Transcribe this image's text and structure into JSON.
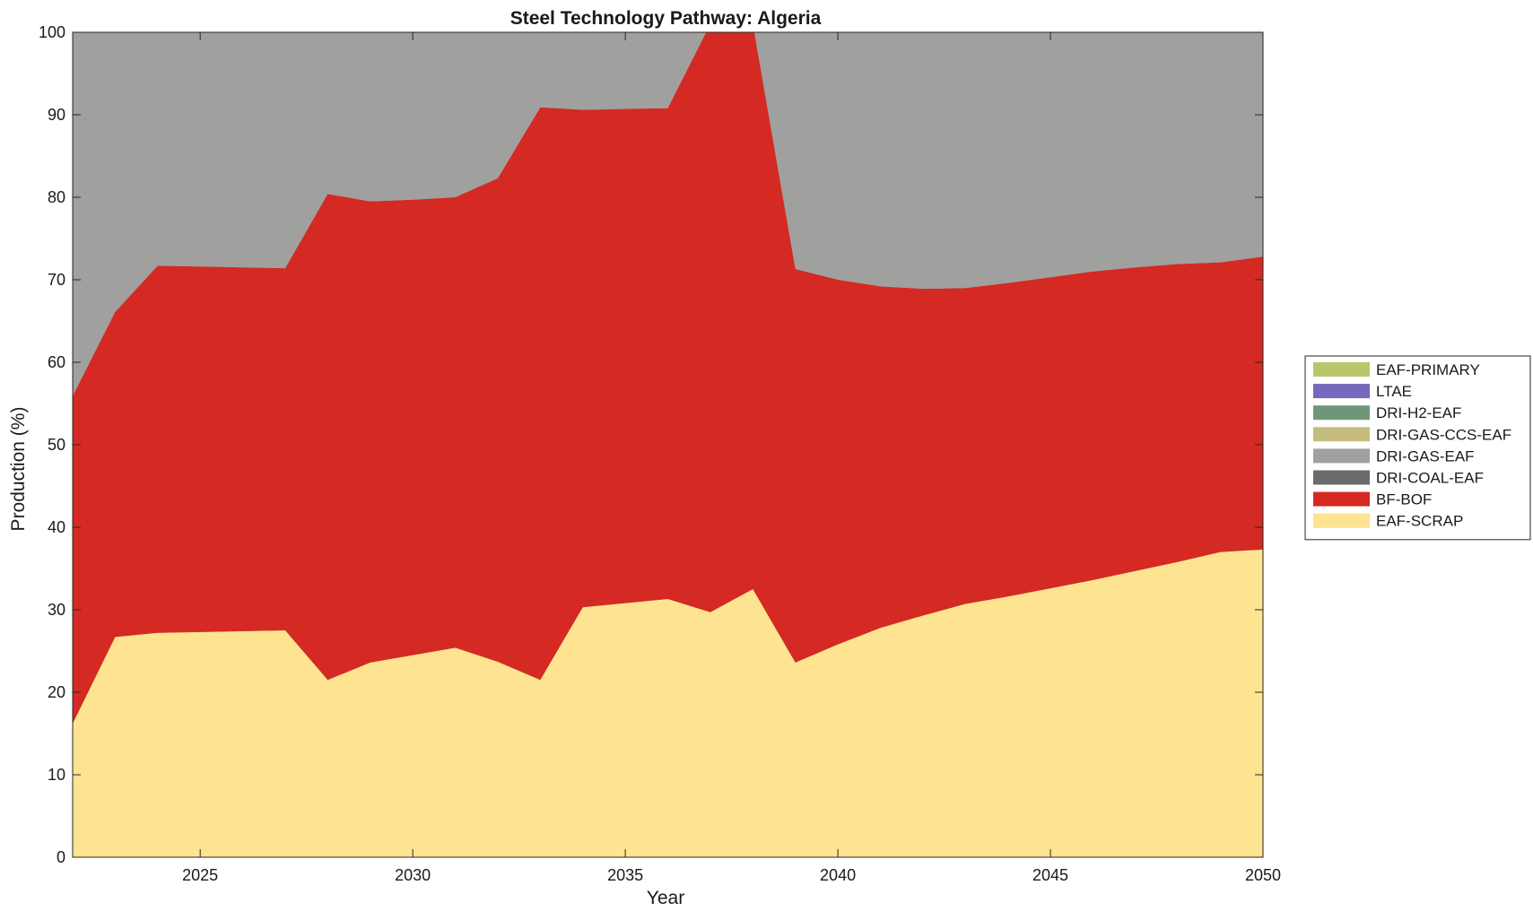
{
  "chart_data": {
    "type": "area",
    "stacked": true,
    "title": "Steel Technology Pathway: Algeria",
    "xlabel": "Year",
    "ylabel": "Production (%)",
    "xlim": [
      2022,
      2050
    ],
    "ylim": [
      0,
      100
    ],
    "xticks": [
      2025,
      2030,
      2035,
      2040,
      2045,
      2050
    ],
    "yticks": [
      0,
      10,
      20,
      30,
      40,
      50,
      60,
      70,
      80,
      90,
      100
    ],
    "grid": false,
    "background_color": "#a0a09f",
    "legend_position": "right",
    "x": [
      2022,
      2023,
      2024,
      2025,
      2026,
      2027,
      2028,
      2029,
      2030,
      2031,
      2032,
      2033,
      2034,
      2035,
      2036,
      2037,
      2038,
      2039,
      2040,
      2041,
      2042,
      2043,
      2044,
      2045,
      2046,
      2047,
      2048,
      2049,
      2050
    ],
    "series": [
      {
        "name": "EAF-SCRAP",
        "color": "#fee391",
        "values": [
          16.2,
          26.7,
          27.2,
          27.3,
          27.4,
          27.5,
          21.5,
          23.6,
          24.5,
          25.4,
          23.7,
          21.5,
          30.3,
          30.8,
          31.3,
          29.7,
          32.5,
          23.6,
          25.8,
          27.8,
          29.3,
          30.7,
          31.6,
          32.6,
          33.6,
          34.7,
          35.8,
          37.0,
          37.3
        ]
      },
      {
        "name": "BF-BOF",
        "color": "#d42a23",
        "values": [
          39.7,
          39.4,
          44.5,
          44.3,
          44.1,
          43.9,
          58.9,
          55.9,
          55.2,
          54.6,
          58.6,
          69.4,
          60.3,
          59.9,
          59.5,
          71.3,
          68.5,
          47.7,
          44.2,
          41.4,
          39.6,
          38.3,
          38.0,
          37.7,
          37.4,
          36.8,
          36.1,
          35.1,
          35.5
        ]
      },
      {
        "name": "DRI-COAL-EAF",
        "color": "#6b6b6b",
        "values": [
          0,
          0,
          0,
          0,
          0,
          0,
          0,
          0,
          0,
          0,
          0,
          0,
          0,
          0,
          0,
          0,
          0,
          0,
          0,
          0,
          0,
          0,
          0,
          0,
          0,
          0,
          0,
          0,
          0
        ]
      },
      {
        "name": "DRI-GAS-EAF",
        "color": "#a0a09f",
        "values": [
          44.1,
          33.9,
          28.3,
          28.4,
          28.5,
          28.6,
          19.6,
          20.5,
          20.3,
          20.0,
          17.7,
          9.1,
          9.4,
          9.3,
          9.2,
          0,
          0,
          28.7,
          30.0,
          30.8,
          31.1,
          31.0,
          30.4,
          29.7,
          29.0,
          28.5,
          28.1,
          27.9,
          27.2
        ]
      },
      {
        "name": "DRI-GAS-CCS-EAF",
        "color": "#c5bc80",
        "values": [
          0,
          0,
          0,
          0,
          0,
          0,
          0,
          0,
          0,
          0,
          0,
          0,
          0,
          0,
          0,
          0,
          0,
          0,
          0,
          0,
          0,
          0,
          0,
          0,
          0,
          0,
          0,
          0,
          0
        ]
      },
      {
        "name": "DRI-H2-EAF",
        "color": "#6e977a",
        "values": [
          0,
          0,
          0,
          0,
          0,
          0,
          0,
          0,
          0,
          0,
          0,
          0,
          0,
          0,
          0,
          0,
          0,
          0,
          0,
          0,
          0,
          0,
          0,
          0,
          0,
          0,
          0,
          0,
          0
        ]
      },
      {
        "name": "LTAE",
        "color": "#7668be",
        "values": [
          0,
          0,
          0,
          0,
          0,
          0,
          0,
          0,
          0,
          0,
          0,
          0,
          0,
          0,
          0,
          0,
          0,
          0,
          0,
          0,
          0,
          0,
          0,
          0,
          0,
          0,
          0,
          0,
          0
        ]
      },
      {
        "name": "EAF-PRIMARY",
        "color": "#bbc56b",
        "values": [
          0,
          0,
          0,
          0,
          0,
          0,
          0,
          0,
          0,
          0,
          0,
          0,
          0,
          0,
          0,
          0,
          0,
          0,
          0,
          0,
          0,
          0,
          0,
          0,
          0,
          0,
          0,
          0,
          0
        ]
      }
    ],
    "legend_order": [
      "EAF-PRIMARY",
      "LTAE",
      "DRI-H2-EAF",
      "DRI-GAS-CCS-EAF",
      "DRI-GAS-EAF",
      "DRI-COAL-EAF",
      "BF-BOF",
      "EAF-SCRAP"
    ]
  }
}
